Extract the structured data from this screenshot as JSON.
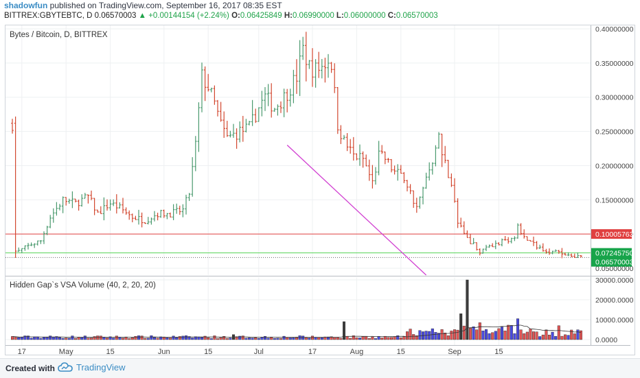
{
  "header": {
    "author": "shadowfun",
    "published": "published on TradingView.com, September 16, 2017 08:35 EST",
    "symbol_tf": "BITTREX:GBYTEBTC, D",
    "last": "0.06570003",
    "arrow": "▲",
    "change": "+0.00144154 (+2.24%)",
    "o_label": "O:",
    "o_value": "0.06425849",
    "h_label": "H:",
    "h_value": "0.06990000",
    "l_label": "L:",
    "l_value": "0.06000000",
    "c_label": "C:",
    "c_value": "0.06570003"
  },
  "footer": {
    "created_with": "Created with",
    "brand": "TradingView"
  },
  "colors": {
    "up": "#4a9a6e",
    "down": "#d2472f",
    "trendline": "#d13fd1",
    "support": "#55d355",
    "resistance": "#e04040",
    "last_label": "#17a44a",
    "grid": "#eef0f2"
  },
  "chart_data": [
    {
      "type": "ohlc",
      "title": "Bytes / Bitcoin, D, BITTREX",
      "y_ticks": [
        "0.40000000",
        "0.35000000",
        "0.30000000",
        "0.25000000",
        "0.20000000",
        "0.15000000",
        "0.10000000",
        "0.05000000"
      ],
      "ylim": [
        0.04,
        0.405
      ],
      "x_ticks": [
        "17",
        "May",
        "15",
        "Jun",
        "15",
        "Jul",
        "17",
        "Aug",
        "15",
        "Sep",
        "15"
      ],
      "price_labels": [
        {
          "value": "0.10005763",
          "price": 0.10005763,
          "color": "#e04040"
        },
        {
          "value": "0.07245750",
          "price": 0.0724575,
          "color": "#17a44a"
        },
        {
          "value": "0.06570003",
          "price": 0.06570003,
          "color": "#17a44a"
        }
      ],
      "horizontal_lines": [
        {
          "price": 0.0724575,
          "color": "#55d355",
          "style": "solid"
        },
        {
          "price": 0.10005763,
          "color": "#e04040",
          "style": "solid"
        },
        {
          "price": 0.06570003,
          "color": "#666666",
          "style": "dotted"
        }
      ],
      "trendline": {
        "from": {
          "date": "2017-07-10",
          "price": 0.23
        },
        "to": {
          "date": "2017-08-23",
          "price": 0.04
        }
      },
      "bars": []
    },
    {
      "type": "bar",
      "title": "Hidden Gap`s VSA Volume (40, 2, 20, 20)",
      "y_ticks": [
        "30000.0000",
        "20000.0000",
        "10000.0000",
        "0.0000"
      ],
      "ylim": [
        0,
        30000
      ],
      "volumes": []
    }
  ]
}
